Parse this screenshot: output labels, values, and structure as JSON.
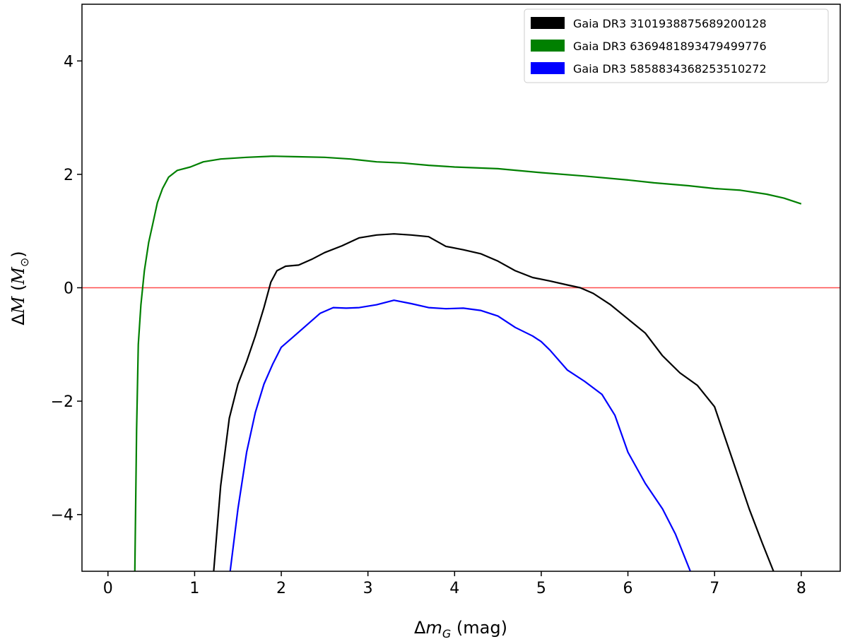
{
  "chart_data": {
    "type": "line",
    "xlabel": "Δm_G (mag)",
    "ylabel": "ΔM (M_⊙)",
    "xlim": [
      -0.3,
      8.45
    ],
    "ylim": [
      -5.0,
      5.0
    ],
    "xticks": [
      0,
      1,
      2,
      3,
      4,
      5,
      6,
      7,
      8
    ],
    "yticks": [
      -4,
      -2,
      0,
      2,
      4
    ],
    "xtick_labels": [
      "0",
      "1",
      "2",
      "3",
      "4",
      "5",
      "6",
      "7",
      "8"
    ],
    "ytick_labels": [
      "−4",
      "−2",
      "0",
      "2",
      "4"
    ],
    "grid": false,
    "legend_position": "top-right",
    "reference_line": {
      "y": 0,
      "color": "#ff4d4d"
    },
    "series": [
      {
        "name": "Gaia DR3 3101938875689200128",
        "color": "#000000",
        "points": [
          [
            1.22,
            -5.0
          ],
          [
            1.3,
            -3.5
          ],
          [
            1.4,
            -2.3
          ],
          [
            1.5,
            -1.7
          ],
          [
            1.6,
            -1.3
          ],
          [
            1.7,
            -0.85
          ],
          [
            1.8,
            -0.35
          ],
          [
            1.88,
            0.1
          ],
          [
            1.95,
            0.3
          ],
          [
            2.05,
            0.38
          ],
          [
            2.2,
            0.4
          ],
          [
            2.35,
            0.5
          ],
          [
            2.5,
            0.62
          ],
          [
            2.7,
            0.74
          ],
          [
            2.9,
            0.88
          ],
          [
            3.1,
            0.93
          ],
          [
            3.3,
            0.95
          ],
          [
            3.5,
            0.93
          ],
          [
            3.7,
            0.9
          ],
          [
            3.9,
            0.73
          ],
          [
            4.1,
            0.67
          ],
          [
            4.3,
            0.6
          ],
          [
            4.5,
            0.47
          ],
          [
            4.7,
            0.3
          ],
          [
            4.9,
            0.18
          ],
          [
            5.1,
            0.12
          ],
          [
            5.3,
            0.05
          ],
          [
            5.45,
            0.0
          ],
          [
            5.6,
            -0.1
          ],
          [
            5.8,
            -0.3
          ],
          [
            6.0,
            -0.55
          ],
          [
            6.2,
            -0.8
          ],
          [
            6.4,
            -1.2
          ],
          [
            6.6,
            -1.5
          ],
          [
            6.8,
            -1.72
          ],
          [
            7.0,
            -2.1
          ],
          [
            7.2,
            -3.0
          ],
          [
            7.4,
            -3.9
          ],
          [
            7.55,
            -4.5
          ],
          [
            7.68,
            -5.0
          ]
        ]
      },
      {
        "name": "Gaia DR3 6369481893479499776",
        "color": "#008000",
        "points": [
          [
            0.31,
            -5.0
          ],
          [
            0.33,
            -2.5
          ],
          [
            0.35,
            -1.0
          ],
          [
            0.38,
            -0.3
          ],
          [
            0.42,
            0.3
          ],
          [
            0.47,
            0.8
          ],
          [
            0.52,
            1.15
          ],
          [
            0.57,
            1.5
          ],
          [
            0.63,
            1.75
          ],
          [
            0.7,
            1.95
          ],
          [
            0.8,
            2.07
          ],
          [
            0.95,
            2.13
          ],
          [
            1.1,
            2.22
          ],
          [
            1.3,
            2.27
          ],
          [
            1.6,
            2.3
          ],
          [
            1.9,
            2.32
          ],
          [
            2.2,
            2.31
          ],
          [
            2.5,
            2.3
          ],
          [
            2.8,
            2.27
          ],
          [
            3.1,
            2.22
          ],
          [
            3.4,
            2.2
          ],
          [
            3.7,
            2.16
          ],
          [
            4.0,
            2.13
          ],
          [
            4.5,
            2.1
          ],
          [
            5.0,
            2.03
          ],
          [
            5.5,
            1.97
          ],
          [
            6.0,
            1.9
          ],
          [
            6.3,
            1.85
          ],
          [
            6.7,
            1.8
          ],
          [
            7.0,
            1.75
          ],
          [
            7.3,
            1.72
          ],
          [
            7.6,
            1.65
          ],
          [
            7.8,
            1.58
          ],
          [
            8.0,
            1.48
          ]
        ]
      },
      {
        "name": "Gaia DR3 5858834368253510272",
        "color": "#0000ff",
        "points": [
          [
            1.41,
            -5.0
          ],
          [
            1.5,
            -3.9
          ],
          [
            1.6,
            -2.9
          ],
          [
            1.7,
            -2.2
          ],
          [
            1.8,
            -1.7
          ],
          [
            1.9,
            -1.35
          ],
          [
            2.0,
            -1.05
          ],
          [
            2.15,
            -0.85
          ],
          [
            2.3,
            -0.65
          ],
          [
            2.45,
            -0.45
          ],
          [
            2.6,
            -0.35
          ],
          [
            2.75,
            -0.36
          ],
          [
            2.9,
            -0.35
          ],
          [
            3.1,
            -0.3
          ],
          [
            3.3,
            -0.22
          ],
          [
            3.5,
            -0.28
          ],
          [
            3.7,
            -0.35
          ],
          [
            3.9,
            -0.37
          ],
          [
            4.1,
            -0.36
          ],
          [
            4.3,
            -0.4
          ],
          [
            4.5,
            -0.5
          ],
          [
            4.7,
            -0.7
          ],
          [
            4.9,
            -0.85
          ],
          [
            5.0,
            -0.95
          ],
          [
            5.1,
            -1.1
          ],
          [
            5.3,
            -1.45
          ],
          [
            5.5,
            -1.65
          ],
          [
            5.7,
            -1.88
          ],
          [
            5.85,
            -2.25
          ],
          [
            6.0,
            -2.9
          ],
          [
            6.2,
            -3.45
          ],
          [
            6.4,
            -3.9
          ],
          [
            6.55,
            -4.35
          ],
          [
            6.72,
            -5.0
          ]
        ]
      }
    ]
  }
}
